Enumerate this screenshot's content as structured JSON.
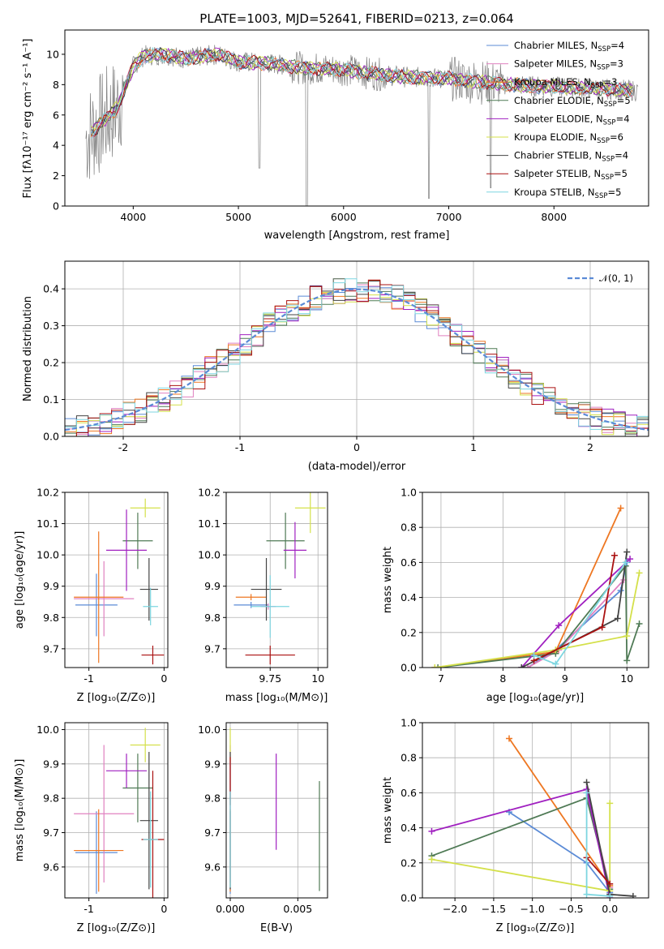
{
  "colors": {
    "chabrier_miles": "#5b8bd6",
    "salpeter_miles": "#e080c0",
    "kroupa_miles": "#ee7722",
    "chabrier_elodie": "#4f7a55",
    "salpeter_elodie": "#a020c0",
    "kroupa_elodie": "#d4e04a",
    "chabrier_stelib": "#444444",
    "salpeter_stelib": "#aa1111",
    "kroupa_stelib": "#7dd6e0",
    "data": "#808080",
    "normal": "#5b8bd6"
  },
  "chart_data": [
    {
      "id": "spectrum",
      "type": "line",
      "title": "PLATE=1003, MJD=52641, FIBERID=0213, z=0.064",
      "xlabel": "wavelength [Angstrom, rest frame]",
      "ylabel": "Flux [fλ10⁻¹⁷ erg cm⁻² s⁻¹ A⁻¹]",
      "xlim": [
        3350,
        8900
      ],
      "ylim": [
        0,
        11.6
      ],
      "xticks": [
        4000,
        5000,
        6000,
        7000,
        8000
      ],
      "yticks": [
        0,
        2,
        4,
        6,
        8,
        10
      ],
      "grid": false,
      "legend_position": "right",
      "legend": [
        {
          "label": "Chabrier MILES, N",
          "sub": "SSP",
          "suffix": "=4",
          "color_key": "chabrier_miles"
        },
        {
          "label": "Salpeter MILES, N",
          "sub": "SSP",
          "suffix": "=3",
          "color_key": "salpeter_miles"
        },
        {
          "label": "Kroupa MILES, N",
          "sub": "SSP",
          "suffix": "=3",
          "color_key": "kroupa_miles"
        },
        {
          "label": "Chabrier ELODIE, N",
          "sub": "SSP",
          "suffix": "=5",
          "color_key": "chabrier_elodie"
        },
        {
          "label": "Salpeter ELODIE, N",
          "sub": "SSP",
          "suffix": "=4",
          "color_key": "salpeter_elodie"
        },
        {
          "label": "Kroupa ELODIE, N",
          "sub": "SSP",
          "suffix": "=6",
          "color_key": "kroupa_elodie"
        },
        {
          "label": "Chabrier STELIB, N",
          "sub": "SSP",
          "suffix": "=4",
          "color_key": "chabrier_stelib"
        },
        {
          "label": "Salpeter STELIB, N",
          "sub": "SSP",
          "suffix": "=5",
          "color_key": "salpeter_stelib"
        },
        {
          "label": "Kroupa STELIB, N",
          "sub": "SSP",
          "suffix": "=5",
          "color_key": "kroupa_stelib"
        }
      ],
      "continuum": {
        "x": [
          3550,
          3700,
          3850,
          3950,
          4000,
          4100,
          4300,
          4500,
          4800,
          5000,
          5300,
          5600,
          6000,
          6300,
          6600,
          7000,
          7400,
          7800,
          8200,
          8800
        ],
        "y": [
          4.5,
          5.5,
          6.5,
          8.3,
          9.2,
          9.9,
          10.0,
          9.7,
          10.0,
          9.5,
          9.4,
          9.1,
          9.0,
          8.7,
          8.5,
          8.4,
          8.1,
          7.9,
          7.8,
          7.6
        ]
      }
    },
    {
      "id": "residuals",
      "type": "line",
      "xlabel": "(data-model)/error",
      "ylabel": "Normed distribution",
      "xlim": [
        -2.5,
        2.5
      ],
      "ylim": [
        0,
        0.475
      ],
      "xticks": [
        -2,
        -1,
        0,
        1,
        2
      ],
      "yticks": [
        0.0,
        0.1,
        0.2,
        0.3,
        0.4
      ],
      "grid": true,
      "legend_position": "top-right",
      "normal_label": "𝒩(0, 1)"
    },
    {
      "id": "age_vs_Z",
      "type": "scatter",
      "xlabel": "Z [log₁₀(Z/Z⊙)]",
      "ylabel": "age  [log₁₀(age/yr)]",
      "xlim": [
        -1.32,
        0.05
      ],
      "ylim": [
        9.64,
        10.2
      ],
      "xticks": [
        -1,
        0
      ],
      "yticks": [
        9.7,
        9.8,
        9.9,
        10.0,
        10.1,
        10.2
      ],
      "grid": true,
      "points": [
        {
          "x": -0.9,
          "y": 9.84,
          "xerr": 0.28,
          "yerr": 0.1,
          "color_key": "chabrier_miles"
        },
        {
          "x": -0.8,
          "y": 9.86,
          "xerr": 0.4,
          "yerr": 0.12,
          "color_key": "salpeter_miles"
        },
        {
          "x": -0.87,
          "y": 9.865,
          "xerr": 0.33,
          "yerr": 0.21,
          "color_key": "kroupa_miles"
        },
        {
          "x": -0.35,
          "y": 10.045,
          "xerr": 0.2,
          "yerr": 0.09,
          "color_key": "chabrier_elodie"
        },
        {
          "x": -0.5,
          "y": 10.015,
          "xerr": 0.27,
          "yerr": 0.13,
          "color_key": "salpeter_elodie"
        },
        {
          "x": -0.25,
          "y": 10.15,
          "xerr": 0.2,
          "yerr": 0.03,
          "color_key": "kroupa_elodie"
        },
        {
          "x": -0.2,
          "y": 9.89,
          "xerr": 0.12,
          "yerr": 0.1,
          "color_key": "chabrier_stelib"
        },
        {
          "x": -0.15,
          "y": 9.68,
          "xerr": 0.15,
          "yerr": 0.03,
          "color_key": "salpeter_stelib"
        },
        {
          "x": -0.18,
          "y": 9.835,
          "xerr": 0.1,
          "yerr": 0.06,
          "color_key": "kroupa_stelib"
        }
      ]
    },
    {
      "id": "age_vs_mass",
      "type": "scatter",
      "xlabel": "mass [log₁₀(M/M⊙)]",
      "ylabel": "",
      "xlim": [
        9.52,
        10.05
      ],
      "ylim": [
        9.64,
        10.2
      ],
      "xticks": [
        9.75,
        10.0
      ],
      "yticks": [
        9.7,
        9.8,
        9.9,
        10.0,
        10.1,
        10.2
      ],
      "grid": true,
      "points": [
        {
          "x": 9.65,
          "y": 9.84,
          "xerr": 0.09,
          "yerr": 0.01,
          "color_key": "chabrier_miles"
        },
        {
          "x": 9.74,
          "y": 9.835,
          "xerr": 0.04,
          "yerr": 0.01,
          "color_key": "salpeter_miles"
        },
        {
          "x": 9.65,
          "y": 9.865,
          "xerr": 0.08,
          "yerr": 0.01,
          "color_key": "kroupa_miles"
        },
        {
          "x": 9.83,
          "y": 10.045,
          "xerr": 0.1,
          "yerr": 0.09,
          "color_key": "chabrier_elodie"
        },
        {
          "x": 9.88,
          "y": 10.015,
          "xerr": 0.06,
          "yerr": 0.09,
          "color_key": "salpeter_elodie"
        },
        {
          "x": 9.96,
          "y": 10.15,
          "xerr": 0.08,
          "yerr": 0.08,
          "color_key": "kroupa_elodie"
        },
        {
          "x": 9.73,
          "y": 9.89,
          "xerr": 0.08,
          "yerr": 0.1,
          "color_key": "chabrier_stelib"
        },
        {
          "x": 9.75,
          "y": 9.68,
          "xerr": 0.13,
          "yerr": 0.03,
          "color_key": "salpeter_stelib"
        },
        {
          "x": 9.75,
          "y": 9.835,
          "xerr": 0.1,
          "yerr": 0.1,
          "color_key": "kroupa_stelib"
        }
      ]
    },
    {
      "id": "massweight_vs_age",
      "type": "line",
      "xlabel": "age  [log₁₀(age/yr)]",
      "ylabel": "mass weight",
      "xlim": [
        6.7,
        10.35
      ],
      "ylim": [
        0,
        1.0
      ],
      "xticks": [
        7,
        8,
        9,
        10
      ],
      "yticks": [
        0.0,
        0.2,
        0.4,
        0.6,
        0.8,
        1.0
      ],
      "grid": true,
      "series": [
        {
          "color_key": "chabrier_miles",
          "x": [
            8.4,
            8.85,
            9.9,
            10.0
          ],
          "y": [
            0.0,
            0.1,
            0.44,
            0.6
          ]
        },
        {
          "color_key": "salpeter_miles",
          "x": [
            8.4,
            8.9,
            9.95
          ],
          "y": [
            0.0,
            0.1,
            0.5
          ]
        },
        {
          "color_key": "kroupa_miles",
          "x": [
            6.9,
            8.85,
            9.9
          ],
          "y": [
            0.0,
            0.09,
            0.91
          ]
        },
        {
          "color_key": "chabrier_elodie",
          "x": [
            6.95,
            8.85,
            9.98,
            10.0,
            10.2
          ],
          "y": [
            0.0,
            0.08,
            0.58,
            0.04,
            0.25
          ]
        },
        {
          "color_key": "salpeter_elodie",
          "x": [
            8.3,
            8.9,
            10.05
          ],
          "y": [
            0.0,
            0.24,
            0.62
          ]
        },
        {
          "color_key": "kroupa_elodie",
          "x": [
            6.9,
            8.85,
            10.0,
            10.2
          ],
          "y": [
            0.0,
            0.1,
            0.18,
            0.54
          ]
        },
        {
          "color_key": "chabrier_stelib",
          "x": [
            8.3,
            9.85,
            10.0
          ],
          "y": [
            0.0,
            0.28,
            0.66
          ]
        },
        {
          "color_key": "salpeter_stelib",
          "x": [
            8.5,
            9.6,
            9.8
          ],
          "y": [
            0.04,
            0.23,
            0.64
          ]
        },
        {
          "color_key": "kroupa_stelib",
          "x": [
            8.5,
            8.85,
            9.98
          ],
          "y": [
            0.07,
            0.02,
            0.6
          ]
        }
      ]
    },
    {
      "id": "mass_vs_Z",
      "type": "scatter",
      "xlabel": "Z [log₁₀(Z/Z⊙)]",
      "ylabel": "mass [log₁₀(M/M⊙)]",
      "xlim": [
        -1.32,
        0.05
      ],
      "ylim": [
        9.51,
        10.02
      ],
      "xticks": [
        -1,
        0
      ],
      "yticks": [
        9.6,
        9.7,
        9.8,
        9.9,
        10.0
      ],
      "grid": true,
      "points": [
        {
          "x": -0.9,
          "y": 9.642,
          "xerr": 0.28,
          "yerr": 0.12,
          "color_key": "chabrier_miles"
        },
        {
          "x": -0.8,
          "y": 9.755,
          "xerr": 0.4,
          "yerr": 0.2,
          "color_key": "salpeter_miles"
        },
        {
          "x": -0.87,
          "y": 9.648,
          "xerr": 0.33,
          "yerr": 0.12,
          "color_key": "kroupa_miles"
        },
        {
          "x": -0.35,
          "y": 9.83,
          "xerr": 0.2,
          "yerr": 0.1,
          "color_key": "chabrier_elodie"
        },
        {
          "x": -0.5,
          "y": 9.88,
          "xerr": 0.27,
          "yerr": 0.05,
          "color_key": "salpeter_elodie"
        },
        {
          "x": -0.25,
          "y": 9.955,
          "xerr": 0.2,
          "yerr": 0.05,
          "color_key": "kroupa_elodie"
        },
        {
          "x": -0.2,
          "y": 9.735,
          "xerr": 0.12,
          "yerr": 0.2,
          "color_key": "chabrier_stelib"
        },
        {
          "x": -0.15,
          "y": 9.68,
          "xerr": 0.15,
          "yerr": 0.2,
          "color_key": "salpeter_stelib"
        },
        {
          "x": -0.18,
          "y": 9.68,
          "xerr": 0.1,
          "yerr": 0.14,
          "color_key": "kroupa_stelib"
        }
      ]
    },
    {
      "id": "mass_vs_EBV",
      "type": "scatter",
      "xlabel": "E(B-V)",
      "ylabel": "",
      "xlim": [
        -0.0003,
        0.0072
      ],
      "ylim": [
        9.51,
        10.02
      ],
      "xticks": [
        0.0,
        0.005
      ],
      "xticklabels": [
        "0.000",
        "0.005"
      ],
      "yticks": [
        9.6,
        9.7,
        9.8,
        9.9,
        10.0
      ],
      "grid": true,
      "points": [
        {
          "x": 0.0,
          "y": 9.642,
          "xerr": 0,
          "yerr": 0.12,
          "color_key": "chabrier_miles"
        },
        {
          "x": 0.0,
          "y": 9.755,
          "xerr": 0,
          "yerr": 0.2,
          "color_key": "salpeter_miles"
        },
        {
          "x": 0.0,
          "y": 9.648,
          "xerr": 0,
          "yerr": 0.12,
          "color_key": "kroupa_miles"
        },
        {
          "x": 0.0066,
          "y": 9.69,
          "xerr": 0,
          "yerr": 0.16,
          "color_key": "chabrier_elodie"
        },
        {
          "x": 0.0034,
          "y": 9.79,
          "xerr": 0,
          "yerr": 0.14,
          "color_key": "salpeter_elodie"
        },
        {
          "x": 0.0,
          "y": 9.955,
          "xerr": 0,
          "yerr": 0.05,
          "color_key": "kroupa_elodie"
        },
        {
          "x": 0.0,
          "y": 9.735,
          "xerr": 0,
          "yerr": 0.2,
          "color_key": "chabrier_stelib"
        },
        {
          "x": 0.0,
          "y": 9.85,
          "xerr": 0,
          "yerr": 0.07,
          "color_key": "salpeter_stelib"
        },
        {
          "x": 0.0,
          "y": 9.68,
          "xerr": 0,
          "yerr": 0.14,
          "color_key": "kroupa_stelib"
        }
      ]
    },
    {
      "id": "massweight_vs_Z",
      "type": "line",
      "xlabel": "Z [log₁₀(Z/Z⊙)]",
      "ylabel": "mass weight",
      "xlim": [
        -2.42,
        0.5
      ],
      "ylim": [
        0,
        1.0
      ],
      "xticks": [
        -2.0,
        -1.5,
        -1.0,
        -0.5,
        0.0
      ],
      "xticklabels": [
        "−2.0",
        "−1.5",
        "−1.0",
        "−0.5",
        "0.0"
      ],
      "yticks": [
        0.0,
        0.2,
        0.4,
        0.6,
        0.8,
        1.0
      ],
      "grid": true,
      "series": [
        {
          "color_key": "chabrier_miles",
          "x": [
            -1.3,
            -0.3,
            0.0
          ],
          "y": [
            0.49,
            0.2,
            0.03
          ]
        },
        {
          "color_key": "salpeter_miles",
          "x": [
            -0.3,
            0.0
          ],
          "y": [
            0.6,
            0.06
          ]
        },
        {
          "color_key": "kroupa_miles",
          "x": [
            -1.3,
            0.0
          ],
          "y": [
            0.91,
            0.07
          ]
        },
        {
          "color_key": "chabrier_elodie",
          "x": [
            -2.3,
            -0.3,
            0.0
          ],
          "y": [
            0.24,
            0.57,
            0.05
          ]
        },
        {
          "color_key": "salpeter_elodie",
          "x": [
            -2.3,
            -0.3,
            0.0
          ],
          "y": [
            0.38,
            0.62,
            0.0
          ]
        },
        {
          "color_key": "kroupa_elodie",
          "x": [
            -2.3,
            0.0,
            0.0
          ],
          "y": [
            0.22,
            0.04,
            0.54
          ]
        },
        {
          "color_key": "chabrier_stelib",
          "x": [
            -0.3,
            0.0,
            0.3
          ],
          "y": [
            0.66,
            0.02,
            0.01
          ]
        },
        {
          "color_key": "salpeter_stelib",
          "x": [
            -0.3,
            0.0
          ],
          "y": [
            0.23,
            0.08
          ]
        },
        {
          "color_key": "kroupa_stelib",
          "x": [
            -0.3,
            -0.3,
            0.0
          ],
          "y": [
            0.6,
            0.02,
            0.01
          ]
        }
      ]
    }
  ]
}
